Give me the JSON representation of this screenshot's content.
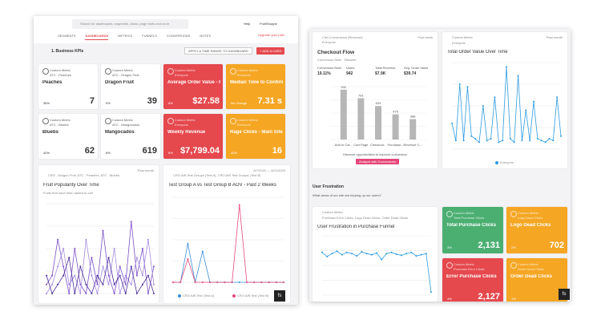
{
  "left": {
    "search_placeholder": "Search for dashboards, segments, clicks, page visits and more",
    "help": "Help",
    "user": "FruitShoppe",
    "upgrade": "Upgrade your plan",
    "tabs": [
      "SEGMENTS",
      "DASHBOARDS",
      "METRICS",
      "FUNNELS",
      "CONVERSIONS",
      "NOTES"
    ],
    "dashboard_title": "1. Business KPIs",
    "time_button": "APPLY A TIME RANGE TO DASHBOARD",
    "add_button": "+ ADD A CARD",
    "cards": [
      {
        "kind": "Custom Metric",
        "segment": "ATC - Peaches",
        "title": "Peaches",
        "change": "36%",
        "value": 7,
        "color": "#ffffff"
      },
      {
        "kind": "Custom Metric",
        "segment": "ATC - Dragon Fruit",
        "title": "Dragon Fruit",
        "change": "9%",
        "value": 39,
        "color": "#ffffff"
      },
      {
        "kind": "Custom Metric",
        "segment": "Everyone",
        "title": "Average Order Value - Pe...",
        "change": "8%",
        "value": "$27.58",
        "color": "#e5484d"
      },
      {
        "kind": "Custom Metric",
        "segment": "Everyone",
        "title": "Median Time to Confirmat...",
        "change": "No Change",
        "value": "7.31 s",
        "color": "#f5a623"
      },
      {
        "kind": "Custom Metric",
        "segment": "ATC - Bluebs",
        "title": "Bluebs",
        "change": "40%",
        "value": 62,
        "color": "#ffffff"
      },
      {
        "kind": "Custom Metric",
        "segment": "ATC - Mangocados",
        "title": "Mangocados",
        "change": "8%",
        "value": 619,
        "color": "#ffffff"
      },
      {
        "kind": "Custom Metric",
        "segment": "Everyone",
        "title": "Weekly Revenue",
        "change": "8%",
        "value": "$7,799.04",
        "color": "#e5484d"
      },
      {
        "kind": "Custom Metric",
        "segment": "Everyone",
        "title": "Rage Clicks - Main Site",
        "change": "40%",
        "value": 16,
        "color": "#f5a623"
      }
    ],
    "fruit_chart": {
      "period": "Past month",
      "segment": "CRO - Dragon Fruit, ATC - Peaches, ATC - Bluebs",
      "title": "Fruit Popularity Over Time",
      "subtitle": "Fruits that have been added to cart",
      "ylim": [
        0,
        10
      ],
      "series": [
        {
          "name": "Dragon Fruit",
          "color": "#7b4fc9",
          "values": [
            1,
            2,
            6,
            3,
            0,
            5,
            1,
            0,
            4,
            1,
            7,
            2,
            0,
            3,
            1,
            8,
            2,
            5,
            0,
            3
          ]
        },
        {
          "name": "Peaches",
          "color": "#a78be0",
          "values": [
            0,
            1,
            3,
            5,
            1,
            2,
            0,
            6,
            2,
            0,
            3,
            1,
            5,
            0,
            2,
            1,
            4,
            2,
            6,
            1
          ]
        },
        {
          "name": "Bluebs",
          "color": "#4b2e9a",
          "values": [
            2,
            0,
            1,
            2,
            4,
            0,
            3,
            1,
            0,
            2,
            1,
            4,
            1,
            2,
            0,
            3,
            0,
            1,
            2,
            0
          ]
        }
      ]
    },
    "ab_chart": {
      "period": "8/7/2020 — 8/21/2020",
      "segment": "CRO A/B Test Groups (Test A), CRO A/B Test Groups (Test B)",
      "title": "Test Group A vs Test Group B AOV - Past 2 Weeks",
      "ylim": [
        0,
        11
      ],
      "series": [
        {
          "name": "CRO A/B Test (Test A)",
          "color": "#3b8fd9",
          "values": [
            0,
            0,
            5,
            0,
            4,
            0,
            0,
            0,
            0,
            0,
            0,
            0,
            0,
            0,
            0,
            0
          ]
        },
        {
          "name": "CRO A/B Test (Test B)",
          "color": "#e5487a",
          "values": [
            0,
            0,
            3,
            0,
            0,
            0,
            0,
            0,
            0,
            10,
            0,
            0,
            0,
            0,
            0,
            0
          ]
        }
      ]
    }
  },
  "right": {
    "checkout": {
      "kind": "Cart Conversions (Revenue)",
      "segment": "Everyone",
      "period": "Past week",
      "title": "Checkout Flow",
      "subtitle": "Conversion Rate · Sitewide",
      "stats": [
        {
          "label": "Conversion Rate",
          "value": "19.11%"
        },
        {
          "label": "Users",
          "value": 942
        },
        {
          "label": "Total Revenue",
          "value": "$7.9K"
        },
        {
          "label": "Avg. Order Value",
          "value": "$39.74"
        }
      ],
      "categories": [
        "Add to Car...",
        "Cart Page",
        "Checkout...",
        "Purchase...",
        "Revenue C..."
      ],
      "values": [
        942,
        781,
        633,
        475,
        386
      ],
      "ylim": [
        0,
        1000
      ],
      "cta_text": "Discover opportunities to improve conversion",
      "cta_button": "Analyze with Conversions"
    },
    "order_chart": {
      "period": "Past month",
      "kind": "Custom Metric",
      "segment": "Everyone",
      "title": "Total Order Value Over Time",
      "ylim": [
        0,
        100
      ],
      "series": [
        {
          "name": "Everyone",
          "color": "#2d9be0",
          "values": [
            30,
            10,
            75,
            10,
            72,
            15,
            12,
            8,
            50,
            10,
            12,
            60,
            8,
            10,
            95,
            12,
            8,
            85,
            10,
            45,
            10,
            55,
            12,
            10,
            8,
            12,
            10,
            60,
            15
          ]
        }
      ]
    },
    "section_title": "User Frustration",
    "section_subtitle": "What areas of our site are tripping up our users?",
    "frustration_chart": {
      "kind": "Custom Metric",
      "segment": "Purchase Error Clicks, Logo Dead Clicks, Order Dead Clicks",
      "title": "User Frustration in Purchase Funnel",
      "ylim": [
        0,
        100
      ],
      "series": [
        {
          "name": "Purchase Error Clicks",
          "color": "#2d9be0",
          "values": [
            72,
            65,
            70,
            74,
            68,
            72,
            70,
            66,
            73,
            70,
            68,
            71,
            60,
            70,
            72,
            69,
            67,
            70,
            72,
            66,
            68,
            70,
            5
          ]
        }
      ]
    },
    "cards": [
      {
        "kind": "Custom Metric",
        "segment": "Total Purchase Clicks",
        "title": "Total Purchase Clicks",
        "change": "3%",
        "value": "2,131",
        "color": "#4caf72"
      },
      {
        "kind": "Custom Metric",
        "segment": "Logo Dead Clicks",
        "title": "Logo Dead Clicks",
        "change": "2%",
        "value": 702,
        "color": "#f5a623"
      },
      {
        "kind": "Custom Metric",
        "segment": "Purchase Error Clicks",
        "title": "Error Purchase Clicks",
        "change": "4%",
        "value": "2,127",
        "color": "#e5484d"
      },
      {
        "kind": "Custom Metric",
        "segment": "Order Dead Clicks",
        "title": "Order Dead Clicks",
        "change": "1%",
        "value": "",
        "color": "#f5a623"
      }
    ]
  }
}
